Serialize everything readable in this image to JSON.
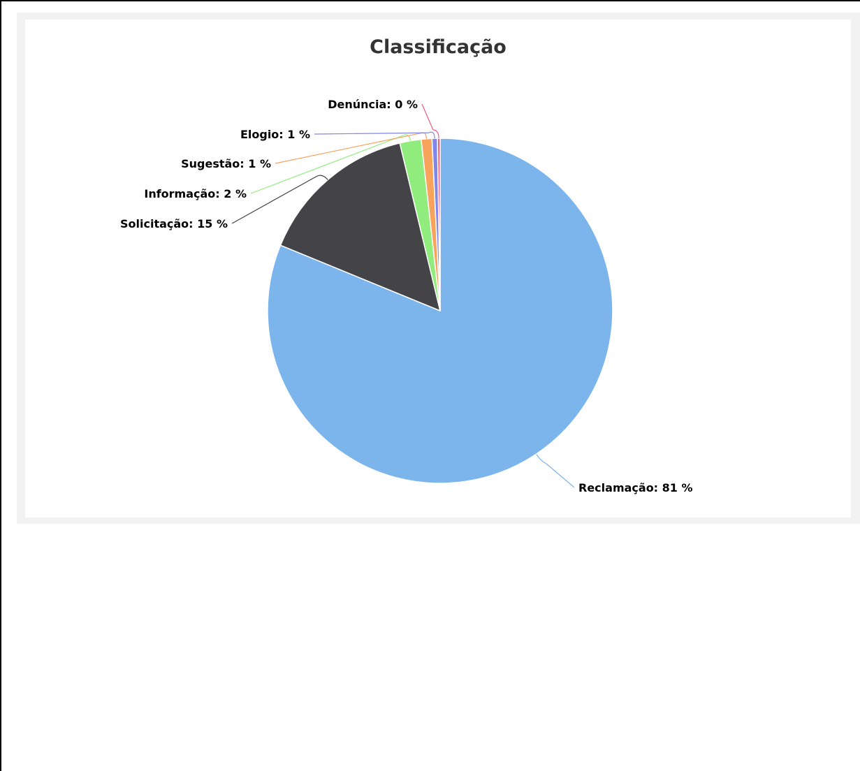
{
  "chart_data": {
    "type": "pie",
    "title": "Classificação",
    "slices": [
      {
        "name": "Reclamação",
        "value": 81,
        "label": "Reclamação: 81 %",
        "color": "#7cb5ec"
      },
      {
        "name": "Solicitação",
        "value": 15,
        "label": "Solicitação: 15 %",
        "color": "#434348"
      },
      {
        "name": "Informação",
        "value": 2,
        "label": "Informação: 2 %",
        "color": "#90ed7d"
      },
      {
        "name": "Sugestão",
        "value": 1,
        "label": "Sugestão: 1 %",
        "color": "#f7a35c"
      },
      {
        "name": "Elogio",
        "value": 0.5,
        "label": "Elogio: 1 %",
        "color": "#8085e9"
      },
      {
        "name": "Denúncia",
        "value": 0.25,
        "label": "Denúncia: 0 %",
        "color": "#f15c80"
      }
    ]
  }
}
